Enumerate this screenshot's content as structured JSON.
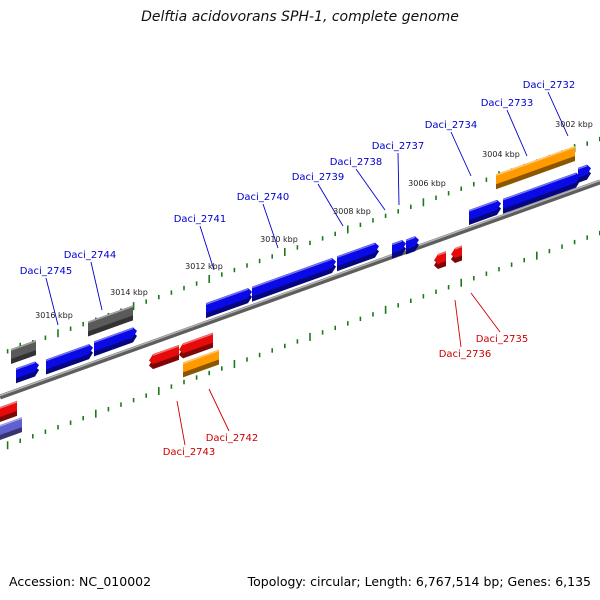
{
  "title": "Delftia acidovorans SPH-1, complete genome",
  "footer": {
    "accession": "Accession: NC_010002",
    "summary": "Topology: circular; Length: 6,767,514 bp; Genes: 6,135"
  },
  "colors": {
    "forward_gene": "#0a0ae6",
    "reverse_gene": "#e60a0a",
    "highlight_gene": "#ff9a00",
    "gray_gene": "#5a5a5a",
    "faded_gene": "#6060d0",
    "tick": "#1a7a1a",
    "backbone": "#808080",
    "forward_label": "#0000cc",
    "reverse_label": "#cc0000"
  },
  "scale_labels": [
    "3002 kbp",
    "3004 kbp",
    "3006 kbp",
    "3008 kbp",
    "3010 kbp",
    "3012 kbp",
    "3014 kbp",
    "3016 kbp"
  ],
  "forward_genes": [
    {
      "name": "Daci_2732"
    },
    {
      "name": "Daci_2733"
    },
    {
      "name": "Daci_2734"
    },
    {
      "name": "Daci_2737"
    },
    {
      "name": "Daci_2738"
    },
    {
      "name": "Daci_2739"
    },
    {
      "name": "Daci_2740"
    },
    {
      "name": "Daci_2741"
    },
    {
      "name": "Daci_2744"
    },
    {
      "name": "Daci_2745"
    }
  ],
  "reverse_genes": [
    {
      "name": "Daci_2735"
    },
    {
      "name": "Daci_2736"
    },
    {
      "name": "Daci_2742"
    },
    {
      "name": "Daci_2743"
    }
  ]
}
